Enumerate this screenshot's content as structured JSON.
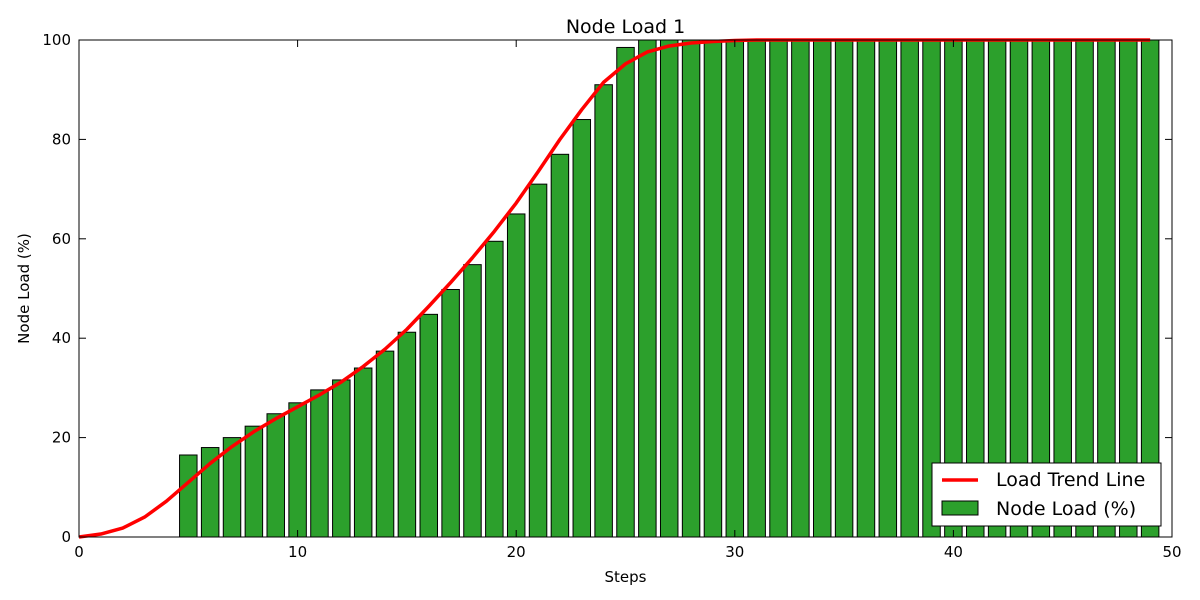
{
  "chart_data": {
    "type": "bar",
    "title": "Node Load 1",
    "xlabel": "Steps",
    "ylabel": "Node Load (%)",
    "xlim": [
      0,
      50
    ],
    "ylim": [
      0,
      100
    ],
    "x_ticks": [
      0,
      10,
      20,
      30,
      40,
      50
    ],
    "y_ticks": [
      0,
      20,
      40,
      60,
      80,
      100
    ],
    "grid": false,
    "legend_position": "bottom-right",
    "x": [
      0,
      1,
      2,
      3,
      4,
      5,
      6,
      7,
      8,
      9,
      10,
      11,
      12,
      13,
      14,
      15,
      16,
      17,
      18,
      19,
      20,
      21,
      22,
      23,
      24,
      25,
      26,
      27,
      28,
      29,
      30,
      31,
      32,
      33,
      34,
      35,
      36,
      37,
      38,
      39,
      40,
      41,
      42,
      43,
      44,
      45,
      46,
      47,
      48,
      49
    ],
    "series": [
      {
        "name": "Node Load (%)",
        "kind": "bar",
        "color": "#2ca02c",
        "values": [
          0,
          0,
          0,
          0,
          0,
          16.5,
          18,
          20,
          22.3,
          24.8,
          27,
          29.6,
          31.6,
          34,
          37.4,
          41.2,
          44.8,
          49.8,
          54.8,
          59.5,
          65,
          71,
          77,
          84,
          91,
          98.5,
          100,
          100,
          100,
          100,
          100,
          100,
          100,
          100,
          100,
          100,
          100,
          100,
          100,
          100,
          100,
          100,
          100,
          100,
          100,
          100,
          100,
          100,
          100,
          100
        ]
      },
      {
        "name": "Load Trend Line",
        "kind": "line",
        "color": "#ff0000",
        "values": [
          0,
          0.6,
          1.8,
          4,
          7.2,
          11,
          14.8,
          18.2,
          21.2,
          23.8,
          26.2,
          28.6,
          31.2,
          34.3,
          37.8,
          41.8,
          46.4,
          51.2,
          56.2,
          61.5,
          67.2,
          73.5,
          80,
          86,
          91.5,
          95.2,
          97.6,
          98.8,
          99.4,
          99.7,
          99.9,
          100,
          100,
          100,
          100,
          100,
          100,
          100,
          100,
          100,
          100,
          100,
          100,
          100,
          100,
          100,
          100,
          100,
          100,
          100
        ]
      }
    ]
  }
}
